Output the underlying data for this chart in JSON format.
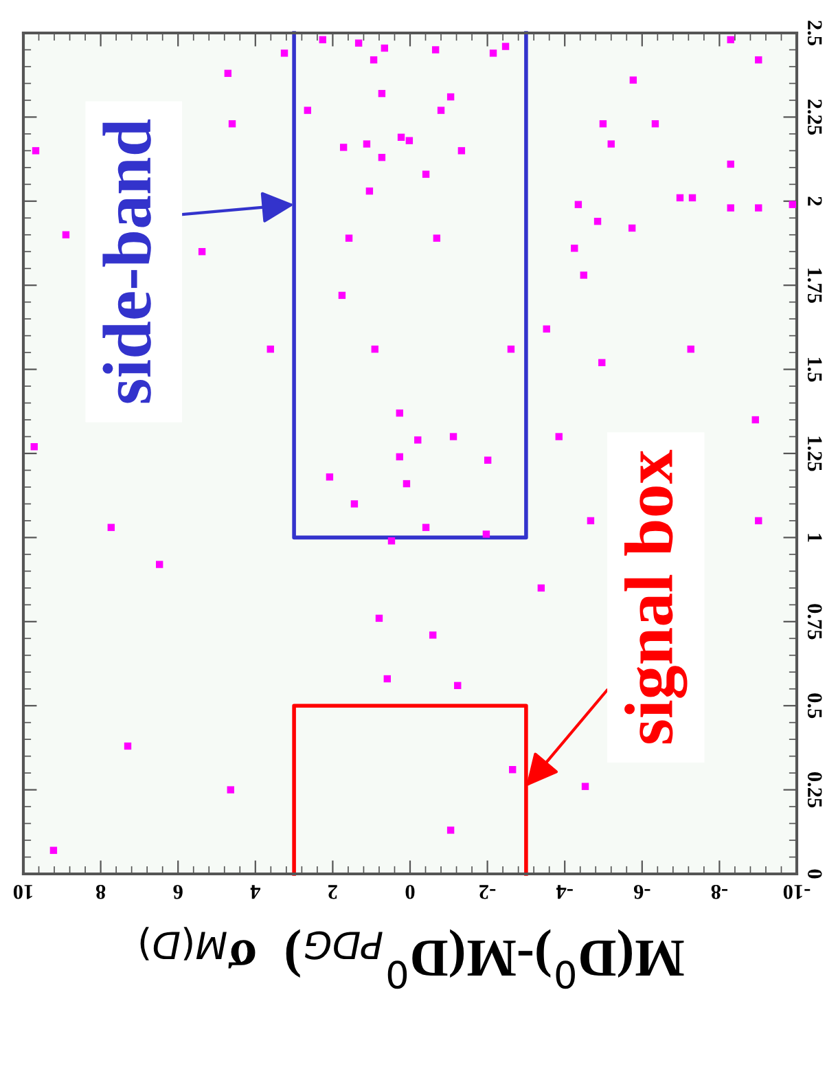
{
  "chart_data": {
    "type": "scatter",
    "xlabel": "M(D$^{0}$)-M(D$^{0}$$_{PDG}$)  σ$_{M(D)}$",
    "xlim": [
      10,
      -10
    ],
    "xticks": [
      -10,
      -8,
      -6,
      -4,
      -2,
      0,
      2,
      4,
      6,
      8,
      10
    ],
    "ylim": [
      0,
      2.5
    ],
    "yticks": [
      0,
      0.25,
      0.5,
      0.75,
      1,
      1.25,
      1.5,
      1.75,
      2,
      2.25,
      2.5
    ],
    "grid": false,
    "marker": "square",
    "series": [
      {
        "color": "#ff00ff",
        "x": [
          2.26,
          1.33,
          0.66,
          0.94,
          3.25,
          4.71,
          0.73,
          2.65,
          4.6,
          9.68,
          1.72,
          1.12,
          0.73,
          0.23,
          0.02,
          1.05,
          8.9,
          5.38,
          1.58,
          1.76,
          3.61,
          0.91,
          0.27,
          0.27,
          2.08,
          0.09,
          1.44,
          9.72,
          0.48,
          7.73,
          6.48,
          0.8,
          0.59,
          7.3,
          4.64,
          9.22,
          -0.66,
          -2.15,
          -2.47,
          -1.05,
          -0.8,
          -1.33,
          -0.41,
          -0.69,
          -2.61,
          -0.2,
          -1.12,
          -2.01,
          -0.41,
          -1.97,
          -0.59,
          -1.23,
          -2.65,
          -1.05,
          -3.39,
          -5.77,
          -4.99,
          -5.2,
          -6.34,
          -8.29,
          -9.01,
          -8.29,
          -6.98,
          -7.3,
          -8.29,
          -9.01,
          -9.89,
          -4.35,
          -4.85,
          -5.74,
          -4.25,
          -4.49,
          -3.53,
          -4.96,
          -7.26,
          -3.85,
          -8.93,
          -4.67,
          -9.01,
          -4.53
        ],
        "values": [
          2.48,
          2.47,
          2.455,
          2.42,
          2.44,
          2.38,
          2.32,
          2.27,
          2.23,
          2.15,
          2.16,
          2.17,
          2.13,
          2.19,
          2.18,
          2.03,
          1.9,
          1.85,
          1.89,
          1.72,
          1.56,
          1.56,
          1.37,
          1.24,
          1.18,
          1.16,
          1.1,
          1.27,
          0.99,
          1.03,
          0.92,
          0.76,
          0.58,
          0.38,
          0.25,
          0.07,
          2.45,
          2.44,
          2.46,
          2.31,
          2.27,
          2.15,
          2.08,
          1.89,
          1.56,
          1.29,
          1.3,
          1.23,
          1.03,
          1.01,
          0.71,
          0.56,
          0.31,
          0.13,
          0.85,
          2.36,
          2.23,
          2.17,
          2.23,
          2.48,
          2.42,
          2.11,
          2.01,
          2.01,
          1.98,
          1.98,
          1.99,
          1.99,
          1.94,
          1.92,
          1.86,
          1.78,
          1.62,
          1.52,
          1.56,
          1.3,
          1.35,
          1.05,
          1.05,
          0.26
        ]
      },
      {
        "type": "line",
        "marker": "none",
        "color": "#ff0000",
        "x": [
          3,
          3,
          -3,
          -3
        ],
        "values": [
          0,
          0.5,
          0.5,
          0
        ]
      },
      {
        "type": "line",
        "marker": "none",
        "color": "#3333cc",
        "x": [
          3,
          3,
          -3,
          -3
        ],
        "values": [
          2.5,
          1,
          1,
          2.5
        ]
      }
    ],
    "annotations": [
      {
        "text": "side-band",
        "x": 3,
        "y": 1.99
      },
      {
        "text": "signal box",
        "x": -3,
        "y": 0.26
      }
    ]
  }
}
